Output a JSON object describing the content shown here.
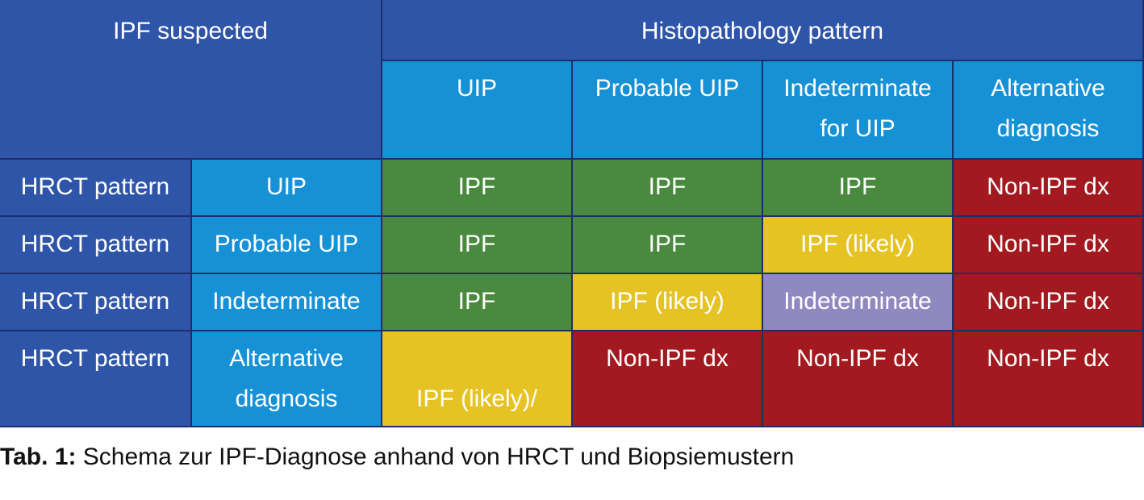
{
  "table": {
    "corner_label": "IPF suspected",
    "group_header": "Histopathology pattern",
    "col_headers": [
      [
        "UIP"
      ],
      [
        "Probable UIP"
      ],
      [
        "Indeterminate",
        "for UIP"
      ],
      [
        "Alternative",
        "diagnosis"
      ]
    ],
    "rows": [
      {
        "group": "HRCT pattern",
        "label": [
          "UIP"
        ],
        "cells": [
          "IPF",
          "IPF",
          "IPF",
          "Non-IPF dx"
        ]
      },
      {
        "group": "HRCT pattern",
        "label": [
          "Probable UIP"
        ],
        "cells": [
          "IPF",
          "IPF",
          "IPF (likely)",
          "Non-IPF dx"
        ]
      },
      {
        "group": "HRCT pattern",
        "label": [
          "Indeterminate"
        ],
        "cells": [
          "IPF",
          "IPF (likely)",
          "Indeterminate",
          "Non-IPF dx"
        ]
      },
      {
        "group": "HRCT pattern",
        "label": [
          "Alternative",
          "diagnosis"
        ],
        "cells": [
          "IPF (likely)/\nnon-IPF dx",
          "Non-IPF dx",
          "Non-IPF dx",
          "Non-IPF dx"
        ]
      }
    ]
  },
  "cell_colors": [
    [
      "green",
      "green",
      "green",
      "red"
    ],
    [
      "green",
      "green",
      "yellow",
      "red"
    ],
    [
      "green",
      "yellow",
      "purple",
      "red"
    ],
    [
      "yellow",
      "red",
      "red",
      "red"
    ]
  ],
  "colors": {
    "header_dark": "#2f55a8",
    "header_light": "#1791d6",
    "ipf": "#4a8a3f",
    "ipf_likely": "#e5c324",
    "non_ipf": "#a21a1f",
    "indeterminate": "#9089c1"
  },
  "caption": {
    "label": "Tab. 1:",
    "text": " Schema zur IPF-Diagnose anhand von HRCT und Biopsiemustern"
  }
}
